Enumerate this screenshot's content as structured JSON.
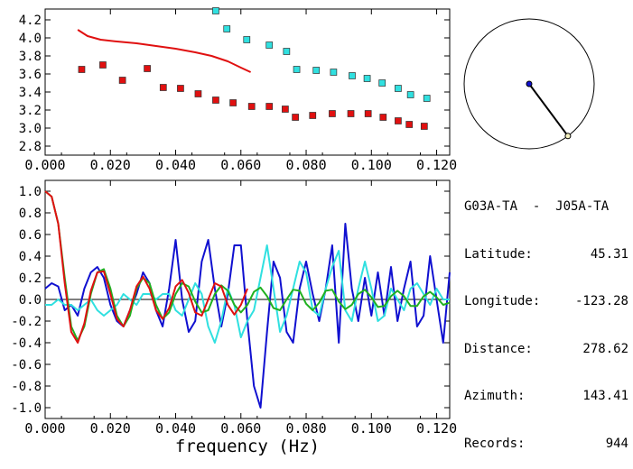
{
  "colors": {
    "blue": "#1010d0",
    "cyan": "#30e0e0",
    "green": "#20b020",
    "red": "#e01010",
    "dark_red": "#c00000"
  },
  "info": {
    "station_pair": "G03A-TA  -  J05A-TA",
    "rows": [
      {
        "label": "Latitude:",
        "value": "45.31"
      },
      {
        "label": "Longitude:",
        "value": "-123.28"
      },
      {
        "label": "Distance:",
        "value": "278.62"
      },
      {
        "label": "Azimuth:",
        "value": "143.41"
      },
      {
        "label": "Records:",
        "value": "944"
      }
    ]
  },
  "x_axis_title": "frequency (Hz)",
  "compass": {
    "azimuth_deg": 143.41
  },
  "chart_data": [
    {
      "type": "scatter",
      "xlim": [
        0.0,
        0.124
      ],
      "ylim": [
        2.7,
        4.32
      ],
      "x_ticks": [
        "0.000",
        "0.020",
        "0.040",
        "0.060",
        "0.080",
        "0.100",
        "0.120"
      ],
      "y_ticks": [
        "2.8",
        "3.0",
        "3.2",
        "3.4",
        "3.6",
        "3.8",
        "4.0",
        "4.2"
      ],
      "series": [
        {
          "color": "red",
          "kind": "markers",
          "x": [
            0.0112,
            0.0177,
            0.0237,
            0.0313,
            0.0362,
            0.0415,
            0.0469,
            0.0523,
            0.0576,
            0.0633,
            0.0687,
            0.0736,
            0.0767,
            0.082,
            0.088,
            0.0937,
            0.099,
            0.1036,
            0.1082,
            0.1116,
            0.1162
          ],
          "y": [
            3.65,
            3.7,
            3.53,
            3.66,
            3.45,
            3.44,
            3.38,
            3.31,
            3.28,
            3.24,
            3.24,
            3.21,
            3.12,
            3.14,
            3.16,
            3.16,
            3.16,
            3.12,
            3.08,
            3.04,
            3.02
          ]
        },
        {
          "color": "cyan",
          "kind": "markers",
          "x": [
            0.0523,
            0.0557,
            0.0618,
            0.0687,
            0.074,
            0.0771,
            0.0831,
            0.0884,
            0.0941,
            0.0987,
            0.1033,
            0.1082,
            0.112,
            0.117
          ],
          "y": [
            4.3,
            4.1,
            3.98,
            3.92,
            3.85,
            3.65,
            3.64,
            3.62,
            3.58,
            3.55,
            3.5,
            3.44,
            3.37,
            3.33
          ]
        },
        {
          "color": "red",
          "kind": "line",
          "x": [
            0.01,
            0.013,
            0.017,
            0.022,
            0.028,
            0.034,
            0.04,
            0.046,
            0.051,
            0.056,
            0.06,
            0.063
          ],
          "y": [
            4.09,
            4.02,
            3.98,
            3.96,
            3.94,
            3.91,
            3.88,
            3.84,
            3.8,
            3.74,
            3.67,
            3.62
          ]
        }
      ]
    },
    {
      "type": "line",
      "xlim": [
        0.0,
        0.124
      ],
      "ylim": [
        -1.1,
        1.1
      ],
      "x_ticks": [
        "0.000",
        "0.020",
        "0.040",
        "0.060",
        "0.080",
        "0.100",
        "0.120"
      ],
      "y_ticks": [
        "1.0",
        "0.8",
        "0.6",
        "0.4",
        "0.2",
        "0.0",
        "-0.2",
        "-0.4",
        "-0.6",
        "-0.8",
        "-1.0"
      ],
      "series": [
        {
          "color": "blue",
          "x": [
            0.0,
            0.002,
            0.004,
            0.006,
            0.008,
            0.01,
            0.012,
            0.014,
            0.016,
            0.018,
            0.02,
            0.022,
            0.024,
            0.026,
            0.028,
            0.03,
            0.032,
            0.034,
            0.036,
            0.038,
            0.04,
            0.042,
            0.044,
            0.046,
            0.048,
            0.05,
            0.052,
            0.054,
            0.056,
            0.058,
            0.06,
            0.062,
            0.064,
            0.066,
            0.068,
            0.07,
            0.072,
            0.074,
            0.076,
            0.078,
            0.08,
            0.082,
            0.084,
            0.086,
            0.088,
            0.09,
            0.092,
            0.094,
            0.096,
            0.098,
            0.1,
            0.102,
            0.104,
            0.106,
            0.108,
            0.11,
            0.112,
            0.114,
            0.116,
            0.118,
            0.12,
            0.122,
            0.124
          ],
          "y": [
            0.1,
            0.15,
            0.12,
            -0.1,
            -0.05,
            -0.15,
            0.1,
            0.25,
            0.3,
            0.2,
            -0.05,
            -0.2,
            -0.25,
            -0.1,
            0.05,
            0.25,
            0.15,
            -0.1,
            -0.25,
            0.1,
            0.55,
            0.0,
            -0.3,
            -0.2,
            0.35,
            0.55,
            0.1,
            -0.25,
            0.05,
            0.5,
            0.5,
            -0.2,
            -0.8,
            -1.0,
            -0.3,
            0.35,
            0.2,
            -0.3,
            -0.4,
            0.1,
            0.35,
            0.05,
            -0.2,
            0.1,
            0.5,
            -0.4,
            0.7,
            0.1,
            -0.2,
            0.2,
            -0.15,
            0.25,
            -0.15,
            0.3,
            -0.2,
            0.1,
            0.35,
            -0.25,
            -0.15,
            0.4,
            0.0,
            -0.4,
            0.25
          ]
        },
        {
          "color": "cyan",
          "x": [
            0.0,
            0.002,
            0.004,
            0.006,
            0.008,
            0.01,
            0.012,
            0.014,
            0.016,
            0.018,
            0.02,
            0.022,
            0.024,
            0.026,
            0.028,
            0.03,
            0.032,
            0.034,
            0.036,
            0.038,
            0.04,
            0.042,
            0.044,
            0.046,
            0.048,
            0.05,
            0.052,
            0.054,
            0.056,
            0.058,
            0.06,
            0.062,
            0.064,
            0.066,
            0.068,
            0.07,
            0.072,
            0.074,
            0.076,
            0.078,
            0.08,
            0.082,
            0.084,
            0.086,
            0.088,
            0.09,
            0.092,
            0.094,
            0.096,
            0.098,
            0.1,
            0.102,
            0.104,
            0.106,
            0.108,
            0.11,
            0.112,
            0.114,
            0.116,
            0.118,
            0.12,
            0.122,
            0.124
          ],
          "y": [
            -0.05,
            -0.05,
            0.0,
            -0.05,
            -0.05,
            -0.1,
            -0.05,
            0.0,
            -0.1,
            -0.15,
            -0.1,
            -0.05,
            0.05,
            0.0,
            -0.05,
            0.05,
            0.05,
            0.0,
            0.05,
            0.05,
            -0.1,
            -0.15,
            0.0,
            0.15,
            0.05,
            -0.25,
            -0.4,
            -0.2,
            0.1,
            -0.05,
            -0.35,
            -0.2,
            -0.1,
            0.2,
            0.5,
            0.1,
            -0.3,
            -0.15,
            0.1,
            0.35,
            0.25,
            -0.1,
            -0.15,
            0.1,
            0.3,
            0.45,
            -0.1,
            -0.2,
            0.1,
            0.35,
            0.1,
            -0.2,
            -0.15,
            0.1,
            0.0,
            -0.1,
            0.1,
            0.15,
            0.05,
            -0.05,
            0.1,
            0.0,
            0.0
          ]
        },
        {
          "color": "green",
          "x": [
            0.0,
            0.002,
            0.004,
            0.006,
            0.008,
            0.01,
            0.012,
            0.014,
            0.016,
            0.018,
            0.02,
            0.022,
            0.024,
            0.026,
            0.028,
            0.03,
            0.032,
            0.034,
            0.036,
            0.038,
            0.04,
            0.042,
            0.044,
            0.046,
            0.048,
            0.05,
            0.052,
            0.054,
            0.056,
            0.058,
            0.06,
            0.062,
            0.064,
            0.066,
            0.068,
            0.07,
            0.072,
            0.074,
            0.076,
            0.078,
            0.08,
            0.082,
            0.084,
            0.086,
            0.088,
            0.09,
            0.092,
            0.094,
            0.096,
            0.098,
            0.1,
            0.102,
            0.104,
            0.106,
            0.108,
            0.11,
            0.112,
            0.114,
            0.116,
            0.118,
            0.12,
            0.122,
            0.124
          ],
          "y": [
            1.0,
            0.95,
            0.7,
            0.2,
            -0.25,
            -0.38,
            -0.25,
            0.05,
            0.25,
            0.28,
            0.1,
            -0.15,
            -0.25,
            -0.15,
            0.1,
            0.2,
            0.15,
            -0.05,
            -0.18,
            -0.12,
            0.05,
            0.15,
            0.12,
            -0.02,
            -0.12,
            -0.1,
            0.05,
            0.13,
            0.08,
            -0.05,
            -0.12,
            -0.05,
            0.07,
            0.11,
            0.03,
            -0.08,
            -0.1,
            0.0,
            0.09,
            0.08,
            -0.04,
            -0.1,
            -0.03,
            0.08,
            0.09,
            -0.02,
            -0.09,
            -0.05,
            0.05,
            0.09,
            0.02,
            -0.07,
            -0.06,
            0.03,
            0.08,
            0.03,
            -0.06,
            -0.06,
            0.03,
            0.07,
            0.02,
            -0.05,
            -0.03
          ]
        },
        {
          "color": "red",
          "x": [
            0.0,
            0.002,
            0.004,
            0.006,
            0.008,
            0.01,
            0.012,
            0.014,
            0.016,
            0.018,
            0.02,
            0.022,
            0.024,
            0.026,
            0.028,
            0.03,
            0.032,
            0.034,
            0.036,
            0.038,
            0.04,
            0.042,
            0.044,
            0.046,
            0.048,
            0.05,
            0.052,
            0.054,
            0.056,
            0.058,
            0.06,
            0.062
          ],
          "y": [
            1.0,
            0.95,
            0.7,
            0.15,
            -0.3,
            -0.4,
            -0.22,
            0.08,
            0.25,
            0.26,
            0.05,
            -0.18,
            -0.25,
            -0.1,
            0.12,
            0.21,
            0.1,
            -0.1,
            -0.18,
            -0.08,
            0.12,
            0.18,
            0.06,
            -0.12,
            -0.15,
            0.0,
            0.15,
            0.12,
            -0.05,
            -0.14,
            -0.05,
            0.1
          ]
        }
      ]
    }
  ]
}
